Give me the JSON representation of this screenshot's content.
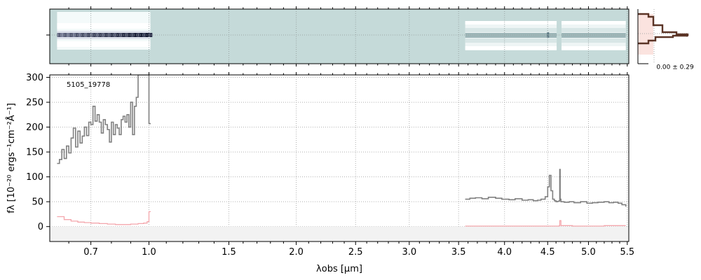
{
  "chart_data": [
    {
      "type": "heatmap",
      "panel": "2d-spectrum",
      "x_segments": [
        [
          0.55,
          1.0
        ],
        [
          3.57,
          5.48
        ]
      ],
      "grid": true
    },
    {
      "type": "line",
      "panel": "1d-spectrum",
      "annotation": "5105_19778",
      "xlabel": "λobs [μm]",
      "ylabel": "fλ [10⁻²⁰ ergs⁻¹cm⁻²Å⁻¹]",
      "xscale": "power-0.5",
      "xlim": [
        0.52,
        5.52
      ],
      "ylim": [
        -30,
        305
      ],
      "xticks": [
        0.7,
        1.0,
        1.5,
        2.0,
        2.5,
        3.0,
        3.5,
        4.0,
        4.5,
        5.0,
        5.5
      ],
      "xtick_labels": [
        "0.7",
        "1.0",
        "1.5",
        "2.0",
        "2.5",
        "3.0",
        "3.5",
        "4.0",
        "4.5",
        "5.0",
        "5.5"
      ],
      "yticks": [
        0,
        50,
        100,
        150,
        200,
        250,
        300
      ],
      "ytick_labels": [
        "0",
        "50",
        "100",
        "150",
        "200",
        "250",
        "300"
      ],
      "grid": true,
      "colors": {
        "flux": "#808080",
        "error": "#f4a6ac",
        "band": "#e0e0e0"
      },
      "series": [
        {
          "role": "flux",
          "segments": [
            {
              "x": [
                0.55,
                0.56,
                0.57,
                0.58,
                0.59,
                0.6,
                0.61,
                0.62,
                0.63,
                0.64,
                0.65,
                0.66,
                0.67,
                0.68,
                0.69,
                0.7,
                0.71,
                0.72,
                0.73,
                0.74,
                0.75,
                0.76,
                0.77,
                0.78,
                0.79,
                0.8,
                0.81,
                0.82,
                0.83,
                0.84,
                0.85,
                0.86,
                0.87,
                0.88,
                0.89,
                0.9,
                0.91,
                0.92,
                0.93,
                0.94,
                0.95,
                0.96,
                0.97,
                0.98,
                0.99,
                1.0,
                1.01
              ],
              "y": [
                127,
                135,
                155,
                137,
                162,
                148,
                178,
                198,
                160,
                192,
                168,
                182,
                200,
                183,
                210,
                205,
                242,
                212,
                225,
                210,
                188,
                215,
                205,
                195,
                170,
                210,
                185,
                205,
                198,
                185,
                215,
                222,
                210,
                225,
                200,
                250,
                185,
                242,
                260,
                305,
                305,
                305,
                305,
                305,
                305,
                207,
                207
              ]
            },
            {
              "x": [
                3.57,
                3.62,
                3.68,
                3.75,
                3.82,
                3.9,
                3.97,
                4.05,
                4.12,
                4.2,
                4.27,
                4.33,
                4.38,
                4.42,
                4.47,
                4.5,
                4.52,
                4.54,
                4.56,
                4.58,
                4.6,
                4.62,
                4.64,
                4.645,
                4.65,
                4.66,
                4.7,
                4.76,
                4.82,
                4.9,
                4.98,
                5.05,
                5.12,
                5.2,
                5.26,
                5.32,
                5.38,
                5.43,
                5.48
              ],
              "y": [
                55,
                57,
                58,
                56,
                59,
                57,
                55,
                54,
                56,
                53,
                54,
                52,
                53,
                55,
                60,
                80,
                103,
                72,
                55,
                52,
                50,
                51,
                52,
                115,
                55,
                50,
                49,
                50,
                48,
                50,
                47,
                48,
                49,
                50,
                48,
                49,
                47,
                44,
                40
              ]
            }
          ]
        },
        {
          "role": "error",
          "segments": [
            {
              "x": [
                0.55,
                0.58,
                0.61,
                0.64,
                0.67,
                0.7,
                0.74,
                0.78,
                0.82,
                0.86,
                0.9,
                0.94,
                0.97,
                0.99,
                1.0,
                1.01
              ],
              "y": [
                20,
                14,
                11,
                9,
                8,
                7,
                6,
                5,
                4,
                4,
                5,
                6,
                7,
                10,
                30,
                30
              ]
            },
            {
              "x": [
                3.57,
                3.8,
                4.0,
                4.3,
                4.6,
                4.64,
                4.645,
                4.66,
                4.8,
                5.0,
                5.2,
                5.48
              ],
              "y": [
                1,
                1,
                1,
                1,
                1,
                2,
                12,
                2,
                1,
                1,
                2,
                2
              ]
            }
          ]
        }
      ]
    },
    {
      "type": "bar",
      "panel": "cross-dispersion-profile",
      "label": "0.00 ± 0.29"
    }
  ]
}
